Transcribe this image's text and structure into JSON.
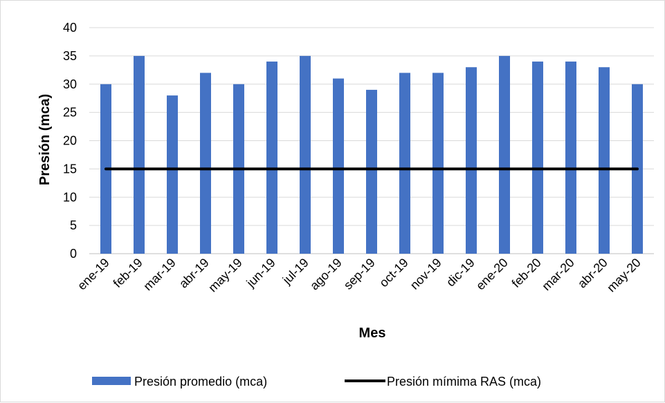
{
  "chart_data": {
    "type": "bar",
    "categories": [
      "ene-19",
      "feb-19",
      "mar-19",
      "abr-19",
      "may-19",
      "jun-19",
      "jul-19",
      "ago-19",
      "sep-19",
      "oct-19",
      "nov-19",
      "dic-19",
      "ene-20",
      "feb-20",
      "mar-20",
      "abr-20",
      "may-20"
    ],
    "series": [
      {
        "name": "Presión promedio (mca)",
        "type": "bar",
        "color": "#4472c4",
        "values": [
          30,
          35,
          28,
          32,
          30,
          34,
          35,
          31,
          29,
          32,
          32,
          33,
          35,
          34,
          34,
          33,
          30
        ]
      },
      {
        "name": "Presión mímima RAS (mca)",
        "type": "line",
        "color": "#000000",
        "values": [
          15,
          15,
          15,
          15,
          15,
          15,
          15,
          15,
          15,
          15,
          15,
          15,
          15,
          15,
          15,
          15,
          15
        ]
      }
    ],
    "xlabel": "Mes",
    "ylabel": "Presión (mca)",
    "ylim": [
      0,
      40
    ],
    "yticks": [
      0,
      5,
      10,
      15,
      20,
      25,
      30,
      35,
      40
    ],
    "grid": "horizontal",
    "legend": "bottom"
  }
}
